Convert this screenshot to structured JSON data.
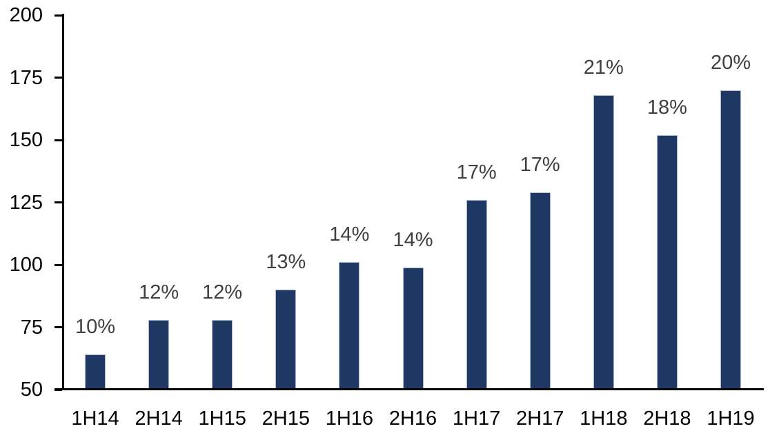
{
  "chart_data": {
    "type": "bar",
    "categories": [
      "1H14",
      "2H14",
      "1H15",
      "2H15",
      "1H16",
      "2H16",
      "1H17",
      "2H17",
      "1H18",
      "2H18",
      "1H19"
    ],
    "values": [
      64,
      78,
      78,
      90,
      101,
      99,
      126,
      129,
      168,
      152,
      170
    ],
    "data_labels": [
      "10%",
      "12%",
      "12%",
      "13%",
      "14%",
      "14%",
      "17%",
      "17%",
      "21%",
      "18%",
      "20%"
    ],
    "ylim": [
      50,
      200
    ],
    "yticks": [
      50,
      75,
      100,
      125,
      150,
      175,
      200
    ],
    "grid": false,
    "legend": false,
    "colors": {
      "bar_fill": "#1F3864",
      "bar_border": "#AEB9CE",
      "data_label": "#404040",
      "axis": "#000000",
      "tick_label": "#000000",
      "background": "#FFFFFF"
    }
  }
}
